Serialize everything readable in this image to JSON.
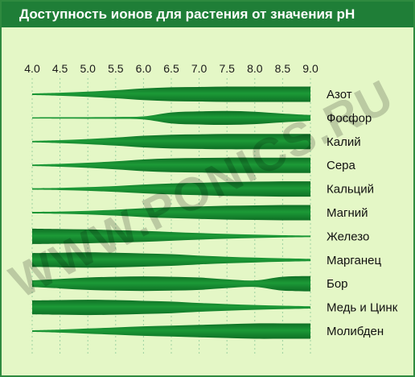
{
  "title": "Доступность ионов для растения от значения pH",
  "watermark": "WWW.PONICS.RU",
  "colors": {
    "header": "#1f7e37",
    "background": "#e4f7c6",
    "band": "#1c9a37",
    "band_dark": "#0f6f25",
    "grid": "#9bd0a0"
  },
  "chart_data": {
    "type": "area",
    "title": "Доступность ионов для растения от значения pH",
    "xlabel": "",
    "ylabel": "",
    "x_ticks": [
      "4.0",
      "4.5",
      "5.0",
      "5.5",
      "6.0",
      "6.5",
      "7.0",
      "7.5",
      "8.0",
      "8.5",
      "9.0"
    ],
    "xlim": [
      4.0,
      9.0
    ],
    "value_meaning": "relative availability (0–1), shown by band thickness",
    "x": [
      4.0,
      4.5,
      5.0,
      5.5,
      6.0,
      6.5,
      7.0,
      7.5,
      8.0,
      8.5,
      9.0
    ],
    "series": [
      {
        "name": "Азот",
        "values": [
          0.05,
          0.15,
          0.3,
          0.5,
          0.75,
          0.9,
          0.95,
          1.0,
          1.0,
          1.0,
          1.0
        ]
      },
      {
        "name": "Фосфор",
        "values": [
          0.03,
          0.04,
          0.05,
          0.07,
          0.15,
          0.7,
          0.85,
          0.9,
          0.8,
          0.55,
          0.35
        ]
      },
      {
        "name": "Калий",
        "values": [
          0.05,
          0.15,
          0.3,
          0.5,
          0.75,
          0.9,
          0.95,
          1.0,
          1.0,
          1.0,
          1.0
        ]
      },
      {
        "name": "Сера",
        "values": [
          0.05,
          0.15,
          0.3,
          0.5,
          0.75,
          0.9,
          0.95,
          1.0,
          1.0,
          1.0,
          1.0
        ]
      },
      {
        "name": "Кальций",
        "values": [
          0.05,
          0.1,
          0.2,
          0.35,
          0.55,
          0.7,
          0.8,
          0.9,
          0.95,
          1.0,
          1.0
        ]
      },
      {
        "name": "Магний",
        "values": [
          0.05,
          0.1,
          0.2,
          0.35,
          0.55,
          0.7,
          0.8,
          0.9,
          0.95,
          1.0,
          1.0
        ]
      },
      {
        "name": "Железо",
        "values": [
          1.0,
          0.95,
          0.9,
          0.8,
          0.7,
          0.55,
          0.4,
          0.28,
          0.18,
          0.1,
          0.05
        ]
      },
      {
        "name": "Марганец",
        "values": [
          0.9,
          0.95,
          1.0,
          0.95,
          0.85,
          0.75,
          0.55,
          0.4,
          0.28,
          0.18,
          0.1
        ]
      },
      {
        "name": "Бор",
        "values": [
          0.4,
          0.6,
          0.8,
          0.9,
          0.95,
          0.9,
          0.8,
          0.55,
          0.4,
          0.9,
          1.0
        ]
      },
      {
        "name": "Медь и Цинк",
        "values": [
          0.9,
          0.95,
          1.0,
          0.95,
          0.85,
          0.75,
          0.55,
          0.4,
          0.28,
          0.18,
          0.1
        ]
      },
      {
        "name": "Молибден",
        "values": [
          0.05,
          0.15,
          0.3,
          0.45,
          0.6,
          0.7,
          0.8,
          0.9,
          1.0,
          1.0,
          1.0
        ]
      }
    ]
  }
}
